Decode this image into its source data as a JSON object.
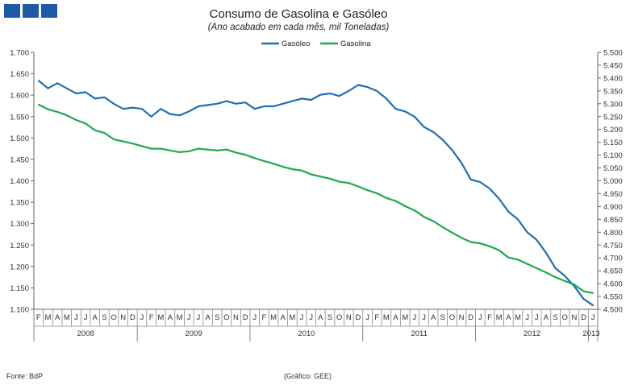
{
  "brand": {
    "logo_color": "#1f5aa6"
  },
  "footer": {
    "source": "Fonte:  BdP",
    "graphic": "(Gráfico:  GEE)"
  },
  "chart_data": {
    "type": "line",
    "title": "Consumo de Gasolina e Gasóleo",
    "subtitle": "(Ano acabado em cada mês,  mil Toneladas)",
    "legend_position": "top-center",
    "grid": false,
    "x": [
      "F",
      "M",
      "A",
      "M",
      "J",
      "J",
      "A",
      "S",
      "O",
      "N",
      "D",
      "J",
      "F",
      "M",
      "A",
      "M",
      "J",
      "J",
      "A",
      "S",
      "O",
      "N",
      "D",
      "J",
      "F",
      "M",
      "A",
      "M",
      "J",
      "J",
      "A",
      "S",
      "O",
      "N",
      "D",
      "J",
      "F",
      "M",
      "A",
      "M",
      "J",
      "J",
      "A",
      "S",
      "O",
      "N",
      "D",
      "J",
      "F",
      "M",
      "A",
      "M",
      "J",
      "J",
      "A",
      "S",
      "O",
      "N",
      "D",
      "J"
    ],
    "years": [
      {
        "label": "2008",
        "start": 0,
        "end": 10
      },
      {
        "label": "2009",
        "start": 11,
        "end": 22
      },
      {
        "label": "2010",
        "start": 23,
        "end": 34
      },
      {
        "label": "2011",
        "start": 35,
        "end": 46
      },
      {
        "label": "2012",
        "start": 47,
        "end": 58
      },
      {
        "label": "2013",
        "start": 59,
        "end": 59
      }
    ],
    "y_left": {
      "ylim": [
        1.1,
        1.7
      ],
      "ticks": [
        "1.100",
        "1.150",
        "1.200",
        "1.250",
        "1.300",
        "1.350",
        "1.400",
        "1.450",
        "1.500",
        "1.550",
        "1.600",
        "1.650",
        "1.700"
      ]
    },
    "y_right": {
      "ylim": [
        4.5,
        5.5
      ],
      "ticks": [
        "4.500",
        "4.550",
        "4.600",
        "4.650",
        "4.700",
        "4.750",
        "4.800",
        "4.850",
        "4.900",
        "4.950",
        "5.000",
        "5.050",
        "5.100",
        "5.150",
        "5.200",
        "5.250",
        "5.300",
        "5.350",
        "5.400",
        "5.450",
        "5.500"
      ]
    },
    "series": [
      {
        "name": "Gasóleo",
        "axis": "right",
        "color": "#2070b0",
        "values": [
          5.39,
          5.36,
          5.38,
          5.36,
          5.34,
          5.345,
          5.32,
          5.325,
          5.3,
          5.28,
          5.285,
          5.28,
          5.25,
          5.28,
          5.26,
          5.255,
          5.27,
          5.29,
          5.295,
          5.3,
          5.31,
          5.3,
          5.305,
          5.28,
          5.29,
          5.29,
          5.3,
          5.31,
          5.32,
          5.315,
          5.335,
          5.34,
          5.33,
          5.35,
          5.373,
          5.365,
          5.35,
          5.32,
          5.28,
          5.27,
          5.25,
          5.21,
          5.19,
          5.16,
          5.12,
          5.07,
          5.005,
          4.995,
          4.97,
          4.93,
          4.88,
          4.85,
          4.8,
          4.77,
          4.72,
          4.66,
          4.63,
          4.59,
          4.54,
          4.515
        ]
      },
      {
        "name": "Gasolina",
        "axis": "left",
        "color": "#1fa84f",
        "values": [
          1.578,
          1.567,
          1.561,
          1.553,
          1.542,
          1.534,
          1.518,
          1.512,
          1.497,
          1.492,
          1.487,
          1.481,
          1.475,
          1.475,
          1.471,
          1.467,
          1.469,
          1.475,
          1.473,
          1.471,
          1.473,
          1.466,
          1.461,
          1.453,
          1.446,
          1.44,
          1.433,
          1.427,
          1.424,
          1.415,
          1.41,
          1.405,
          1.398,
          1.395,
          1.387,
          1.378,
          1.371,
          1.36,
          1.353,
          1.341,
          1.331,
          1.316,
          1.306,
          1.292,
          1.279,
          1.267,
          1.257,
          1.254,
          1.247,
          1.238,
          1.221,
          1.216,
          1.206,
          1.196,
          1.186,
          1.175,
          1.166,
          1.158,
          1.142,
          1.138
        ]
      }
    ]
  }
}
